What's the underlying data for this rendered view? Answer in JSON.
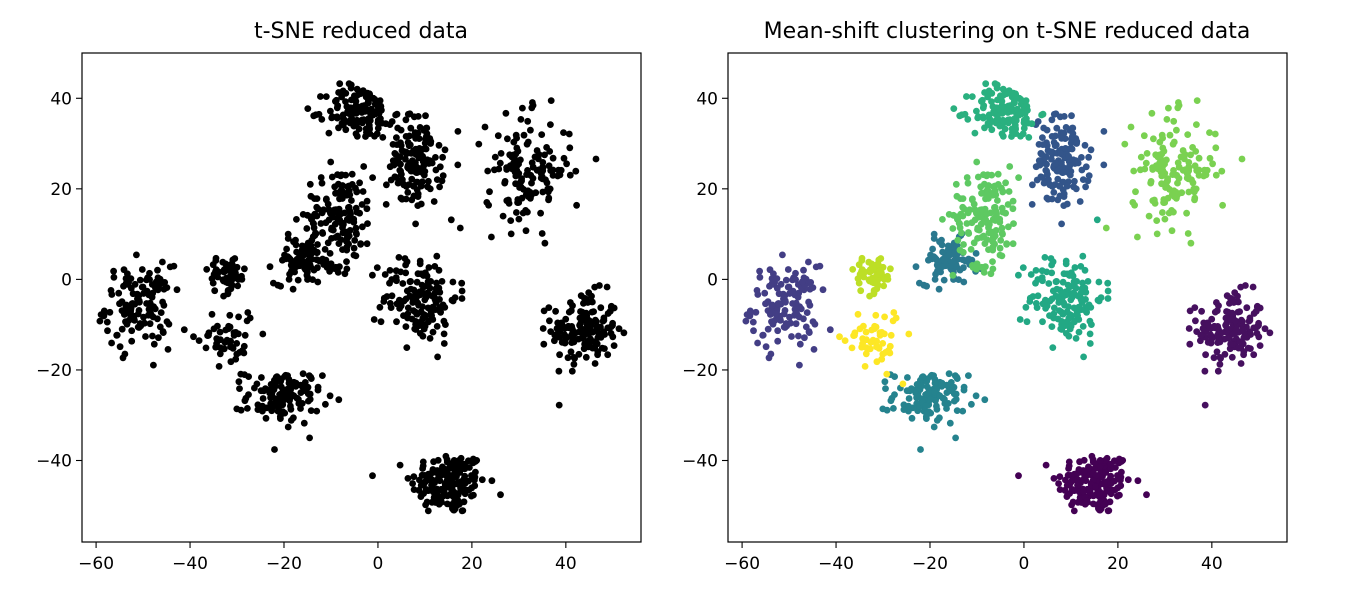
{
  "chart_data": [
    {
      "type": "scatter",
      "title": "t-SNE reduced data",
      "xlabel": "",
      "ylabel": "",
      "xlim": [
        -63,
        56
      ],
      "ylim": [
        -58,
        50
      ],
      "xticks": [
        -60,
        -40,
        -20,
        0,
        20,
        40
      ],
      "yticks": [
        -40,
        -20,
        0,
        20,
        40
      ],
      "xtick_labels": [
        "−60",
        "−40",
        "−20",
        "0",
        "20",
        "40"
      ],
      "ytick_labels": [
        "−40",
        "−20",
        "0",
        "20",
        "40"
      ],
      "colored": false,
      "point_color": "#000000"
    },
    {
      "type": "scatter",
      "title": "Mean-shift clustering on t-SNE reduced data",
      "xlabel": "",
      "ylabel": "",
      "xlim": [
        -63,
        56
      ],
      "ylim": [
        -58,
        50
      ],
      "xticks": [
        -60,
        -40,
        -20,
        0,
        20,
        40
      ],
      "yticks": [
        -40,
        -20,
        0,
        20,
        40
      ],
      "xtick_labels": [
        "−60",
        "−40",
        "−20",
        "0",
        "20",
        "40"
      ],
      "ytick_labels": [
        "−40",
        "−20",
        "0",
        "20",
        "40"
      ],
      "colored": true
    }
  ],
  "clusters": [
    {
      "id": 0,
      "center": [
        15,
        -45
      ],
      "spread": [
        4.0,
        3.5
      ],
      "count": 170,
      "color": "#440154"
    },
    {
      "id": 1,
      "center": [
        44,
        -11
      ],
      "spread": [
        3.5,
        4.0
      ],
      "count": 150,
      "color": "#46105f"
    },
    {
      "id": 2,
      "center": [
        -51,
        -6
      ],
      "spread": [
        3.5,
        4.5
      ],
      "count": 130,
      "color": "#433e85"
    },
    {
      "id": 3,
      "center": [
        8,
        26
      ],
      "spread": [
        3.0,
        5.0
      ],
      "count": 150,
      "color": "#33558a"
    },
    {
      "id": 4,
      "center": [
        -20,
        -26
      ],
      "spread": [
        4.0,
        3.0
      ],
      "count": 120,
      "color": "#25838e"
    },
    {
      "id": 5,
      "center": [
        -16,
        4
      ],
      "spread": [
        3.0,
        2.5
      ],
      "count": 80,
      "color": "#2a788e"
    },
    {
      "id": 6,
      "center": [
        9,
        -4
      ],
      "spread": [
        4.0,
        5.0
      ],
      "count": 150,
      "color": "#22a884"
    },
    {
      "id": 7,
      "center": [
        -4,
        37
      ],
      "spread": [
        3.5,
        3.0
      ],
      "count": 140,
      "color": "#2ab07f"
    },
    {
      "id": 8,
      "center": [
        -8,
        14
      ],
      "spread": [
        3.5,
        5.5
      ],
      "count": 150,
      "color": "#5ec962"
    },
    {
      "id": 9,
      "center": [
        32,
        24
      ],
      "spread": [
        4.5,
        6.0
      ],
      "count": 140,
      "color": "#7ad151"
    },
    {
      "id": 10,
      "center": [
        -32,
        1
      ],
      "spread": [
        2.0,
        2.0
      ],
      "count": 60,
      "color": "#bddf26"
    },
    {
      "id": 11,
      "center": [
        -32,
        -13
      ],
      "spread": [
        3.0,
        3.5
      ],
      "count": 50,
      "color": "#fde725"
    }
  ]
}
